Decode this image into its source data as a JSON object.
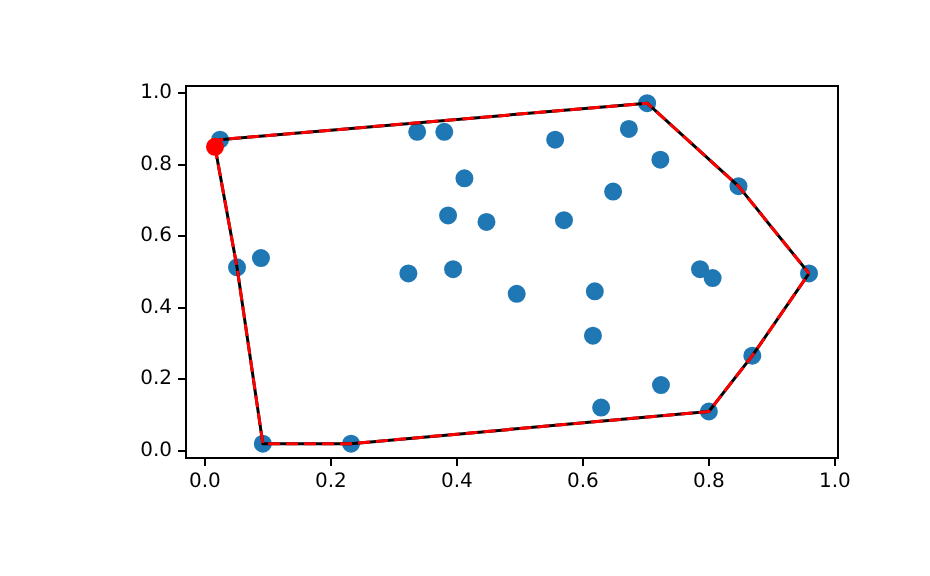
{
  "chart_data": {
    "type": "scatter",
    "xlim": [
      -0.03,
      1.005
    ],
    "ylim": [
      -0.02,
      1.02
    ],
    "xticks": [
      {
        "value": 0,
        "label": "0.0"
      },
      {
        "value": 0.2,
        "label": "0.2"
      },
      {
        "value": 0.4,
        "label": "0.4"
      },
      {
        "value": 0.6,
        "label": "0.6"
      },
      {
        "value": 0.8,
        "label": "0.8"
      },
      {
        "value": 1,
        "label": "1.0"
      }
    ],
    "yticks": [
      {
        "value": 0,
        "label": "0.0"
      },
      {
        "value": 0.2,
        "label": "0.2"
      },
      {
        "value": 0.4,
        "label": "0.4"
      },
      {
        "value": 0.6,
        "label": "0.6"
      },
      {
        "value": 0.8,
        "label": "0.8"
      },
      {
        "value": 1,
        "label": "1.0"
      }
    ],
    "grid": false,
    "legend": false,
    "series": [
      {
        "type": "scatter",
        "marker": "circle",
        "color": "#1f77b4",
        "x": [
          0.024,
          0.051,
          0.089,
          0.092,
          0.232,
          0.337,
          0.38,
          0.412,
          0.386,
          0.447,
          0.323,
          0.394,
          0.702,
          0.673,
          0.556,
          0.723,
          0.847,
          0.648,
          0.57,
          0.786,
          0.806,
          0.959,
          0.495,
          0.619,
          0.616,
          0.869,
          0.724,
          0.629,
          0.8
        ],
        "values": [
          0.87,
          0.513,
          0.539,
          0.02,
          0.02,
          0.892,
          0.892,
          0.762,
          0.658,
          0.64,
          0.496,
          0.508,
          0.972,
          0.9,
          0.87,
          0.814,
          0.74,
          0.725,
          0.645,
          0.508,
          0.483,
          0.496,
          0.439,
          0.446,
          0.322,
          0.266,
          0.184,
          0.121,
          0.11
        ]
      },
      {
        "type": "line",
        "marker": "none",
        "line_style": "solid",
        "color": "#000000",
        "x": [
          0.016,
          0.024,
          0.702,
          0.847,
          0.959
        ],
        "values": [
          0.85,
          0.87,
          0.972,
          0.74,
          0.496
        ]
      },
      {
        "type": "line",
        "marker": "none",
        "line_style": "solid",
        "color": "#000000",
        "x": [
          0.016,
          0.051,
          0.092,
          0.232,
          0.8,
          0.869,
          0.959
        ],
        "values": [
          0.85,
          0.513,
          0.02,
          0.02,
          0.11,
          0.266,
          0.496
        ]
      },
      {
        "type": "line",
        "marker": "none",
        "line_style": "dashed",
        "color": "#ff0000",
        "x": [
          0.016,
          0.024,
          0.702,
          0.847,
          0.959
        ],
        "values": [
          0.85,
          0.87,
          0.972,
          0.74,
          0.496
        ]
      },
      {
        "type": "line",
        "marker": "none",
        "line_style": "dashed",
        "color": "#ff0000",
        "x": [
          0.016,
          0.051,
          0.092,
          0.232,
          0.8,
          0.869,
          0.959
        ],
        "values": [
          0.85,
          0.513,
          0.02,
          0.02,
          0.11,
          0.266,
          0.496
        ]
      },
      {
        "type": "scatter",
        "marker": "circle",
        "color": "#ff0000",
        "x": [
          0.016
        ],
        "values": [
          0.85
        ]
      }
    ]
  }
}
